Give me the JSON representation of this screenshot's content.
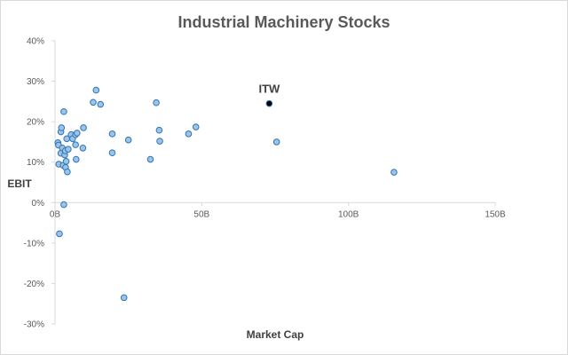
{
  "chart_data": {
    "type": "scatter",
    "title": "Industrial Machinery Stocks",
    "xlabel": "Market Cap",
    "ylabel": "EBIT",
    "xlim": [
      0,
      150
    ],
    "ylim": [
      -30,
      40
    ],
    "x_unit": "B",
    "y_unit": "%",
    "x_ticks": [
      "0B",
      "50B",
      "100B",
      "150B"
    ],
    "y_ticks": [
      "40%",
      "30%",
      "20%",
      "10%",
      "0%",
      "-10%",
      "-20%",
      "-30%"
    ],
    "grid": false,
    "point_color": "#9dc3e6",
    "point_edge_color": "#2e75b6",
    "highlight_color": "#000000",
    "annotations": [
      {
        "label": "ITW",
        "x": 73,
        "y": 24.5
      }
    ],
    "series": [
      {
        "points": [
          [
            1,
            14.8
          ],
          [
            1.2,
            14.2
          ],
          [
            1.3,
            9.5
          ],
          [
            1.5,
            -7.7
          ],
          [
            2,
            12.2
          ],
          [
            2,
            17.5
          ],
          [
            2.2,
            18.5
          ],
          [
            2.5,
            13.5
          ],
          [
            2.8,
            9.2
          ],
          [
            3,
            22.5
          ],
          [
            3,
            -0.5
          ],
          [
            3.3,
            11.8
          ],
          [
            3.5,
            12.8
          ],
          [
            3.6,
            8.7
          ],
          [
            3.8,
            10.2
          ],
          [
            4,
            15.8
          ],
          [
            4.2,
            7.6
          ],
          [
            4.5,
            13.2
          ],
          [
            5.5,
            16.8
          ],
          [
            6,
            15.8
          ],
          [
            7,
            14.3
          ],
          [
            7,
            16.8
          ],
          [
            7.2,
            10.7
          ],
          [
            7.5,
            17.2
          ],
          [
            9.5,
            13.5
          ],
          [
            9.7,
            18.5
          ],
          [
            13,
            24.8
          ],
          [
            14,
            27.8
          ],
          [
            15.5,
            24.3
          ],
          [
            19.5,
            17
          ],
          [
            19.5,
            12.3
          ],
          [
            23.5,
            -23.5
          ],
          [
            25,
            15.5
          ],
          [
            32.5,
            10.7
          ],
          [
            34.5,
            24.7
          ],
          [
            35.5,
            17.9
          ],
          [
            35.7,
            15.2
          ],
          [
            45.5,
            17
          ],
          [
            48,
            18.7
          ],
          [
            75.5,
            15
          ],
          [
            115.5,
            7.5
          ]
        ]
      },
      {
        "name": "ITW",
        "highlight": true,
        "points": [
          [
            73,
            24.5
          ]
        ]
      }
    ]
  }
}
